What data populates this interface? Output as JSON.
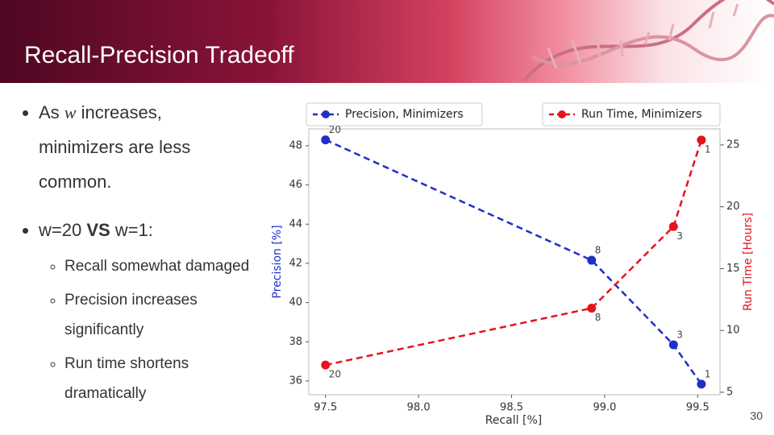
{
  "slide": {
    "title": "Recall-Precision Tradeoff",
    "page_number": "30"
  },
  "bullets": [
    [
      "As ",
      "w",
      " increases, minimizers are less common."
    ],
    [
      "w=20 ",
      "VS",
      " w=1:"
    ]
  ],
  "sub_bullets": [
    "Recall somewhat damaged",
    "Precision increases significantly",
    "Run time shortens dramatically"
  ],
  "chart_data": {
    "type": "line",
    "x_label": "Recall [%]",
    "y_label": "Precision [%]",
    "y2_label": "Run Time [Hours]",
    "x": [
      97.5,
      98.93,
      99.37,
      99.52
    ],
    "series": [
      {
        "name": "Precision, Minimizers",
        "color": "#1f2fc8",
        "values": [
          48.3,
          42.16,
          37.85,
          35.84
        ],
        "point_labels": [
          "20",
          "8",
          "3",
          "1"
        ]
      },
      {
        "name": "Run Time, Minimizers",
        "color": "#e5141c",
        "axis": "y2",
        "values": [
          7.2,
          11.8,
          18.4,
          25.4
        ],
        "point_labels": [
          "20",
          "8",
          "3",
          "1"
        ]
      }
    ],
    "xlim": [
      97.41,
      99.62
    ],
    "xticks": [
      97.5,
      {
        "value": 98,
        "label": "98.0"
      },
      98.5,
      {
        "value": 99,
        "label": "99.0"
      },
      99.5
    ],
    "ylim": [
      35.3,
      48.86
    ],
    "yticks": [
      36,
      38,
      40,
      42,
      44,
      46,
      48
    ],
    "y2lim": [
      4.8,
      26.3
    ],
    "y2ticks": [
      5,
      10,
      15,
      20,
      25
    ],
    "legend": "top"
  }
}
